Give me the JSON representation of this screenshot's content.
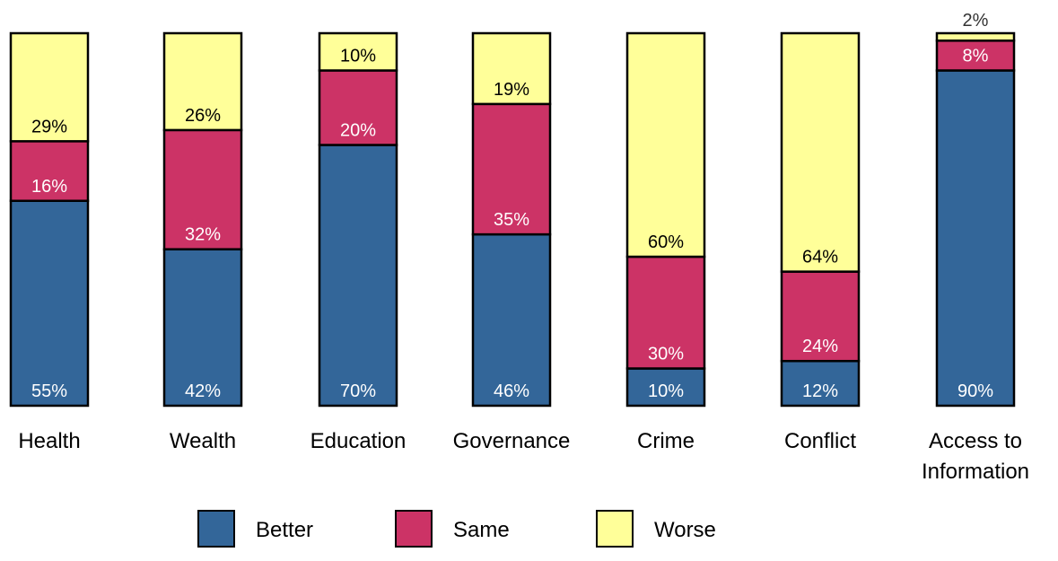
{
  "chart_data": {
    "type": "bar",
    "stacked": true,
    "orientation": "vertical",
    "title": "",
    "xlabel": "",
    "ylabel": "",
    "ylim": [
      0,
      100
    ],
    "grid": false,
    "legend_position": "bottom",
    "categories": [
      [
        "Health"
      ],
      [
        "Wealth"
      ],
      [
        "Education"
      ],
      [
        "Governance"
      ],
      [
        "Crime"
      ],
      [
        "Conflict"
      ],
      [
        "Access to",
        "Information"
      ]
    ],
    "series": [
      {
        "name": "Better",
        "color": "#336699",
        "label_color": "#ffffff",
        "values": [
          55,
          42,
          70,
          46,
          10,
          12,
          90
        ],
        "labels": [
          "55%",
          "42%",
          "70%",
          "46%",
          "10%",
          "12%",
          "90%"
        ]
      },
      {
        "name": "Same",
        "color": "#cc3366",
        "label_color": "#ffffff",
        "values": [
          16,
          32,
          20,
          35,
          30,
          24,
          8
        ],
        "labels": [
          "16%",
          "32%",
          "20%",
          "35%",
          "30%",
          "24%",
          "8%"
        ]
      },
      {
        "name": "Worse",
        "color": "#ffff99",
        "label_color": "#000000",
        "values": [
          29,
          26,
          10,
          19,
          60,
          64,
          2
        ],
        "labels": [
          "29%",
          "26%",
          "10%",
          "19%",
          "60%",
          "64%",
          "2%"
        ]
      }
    ]
  }
}
